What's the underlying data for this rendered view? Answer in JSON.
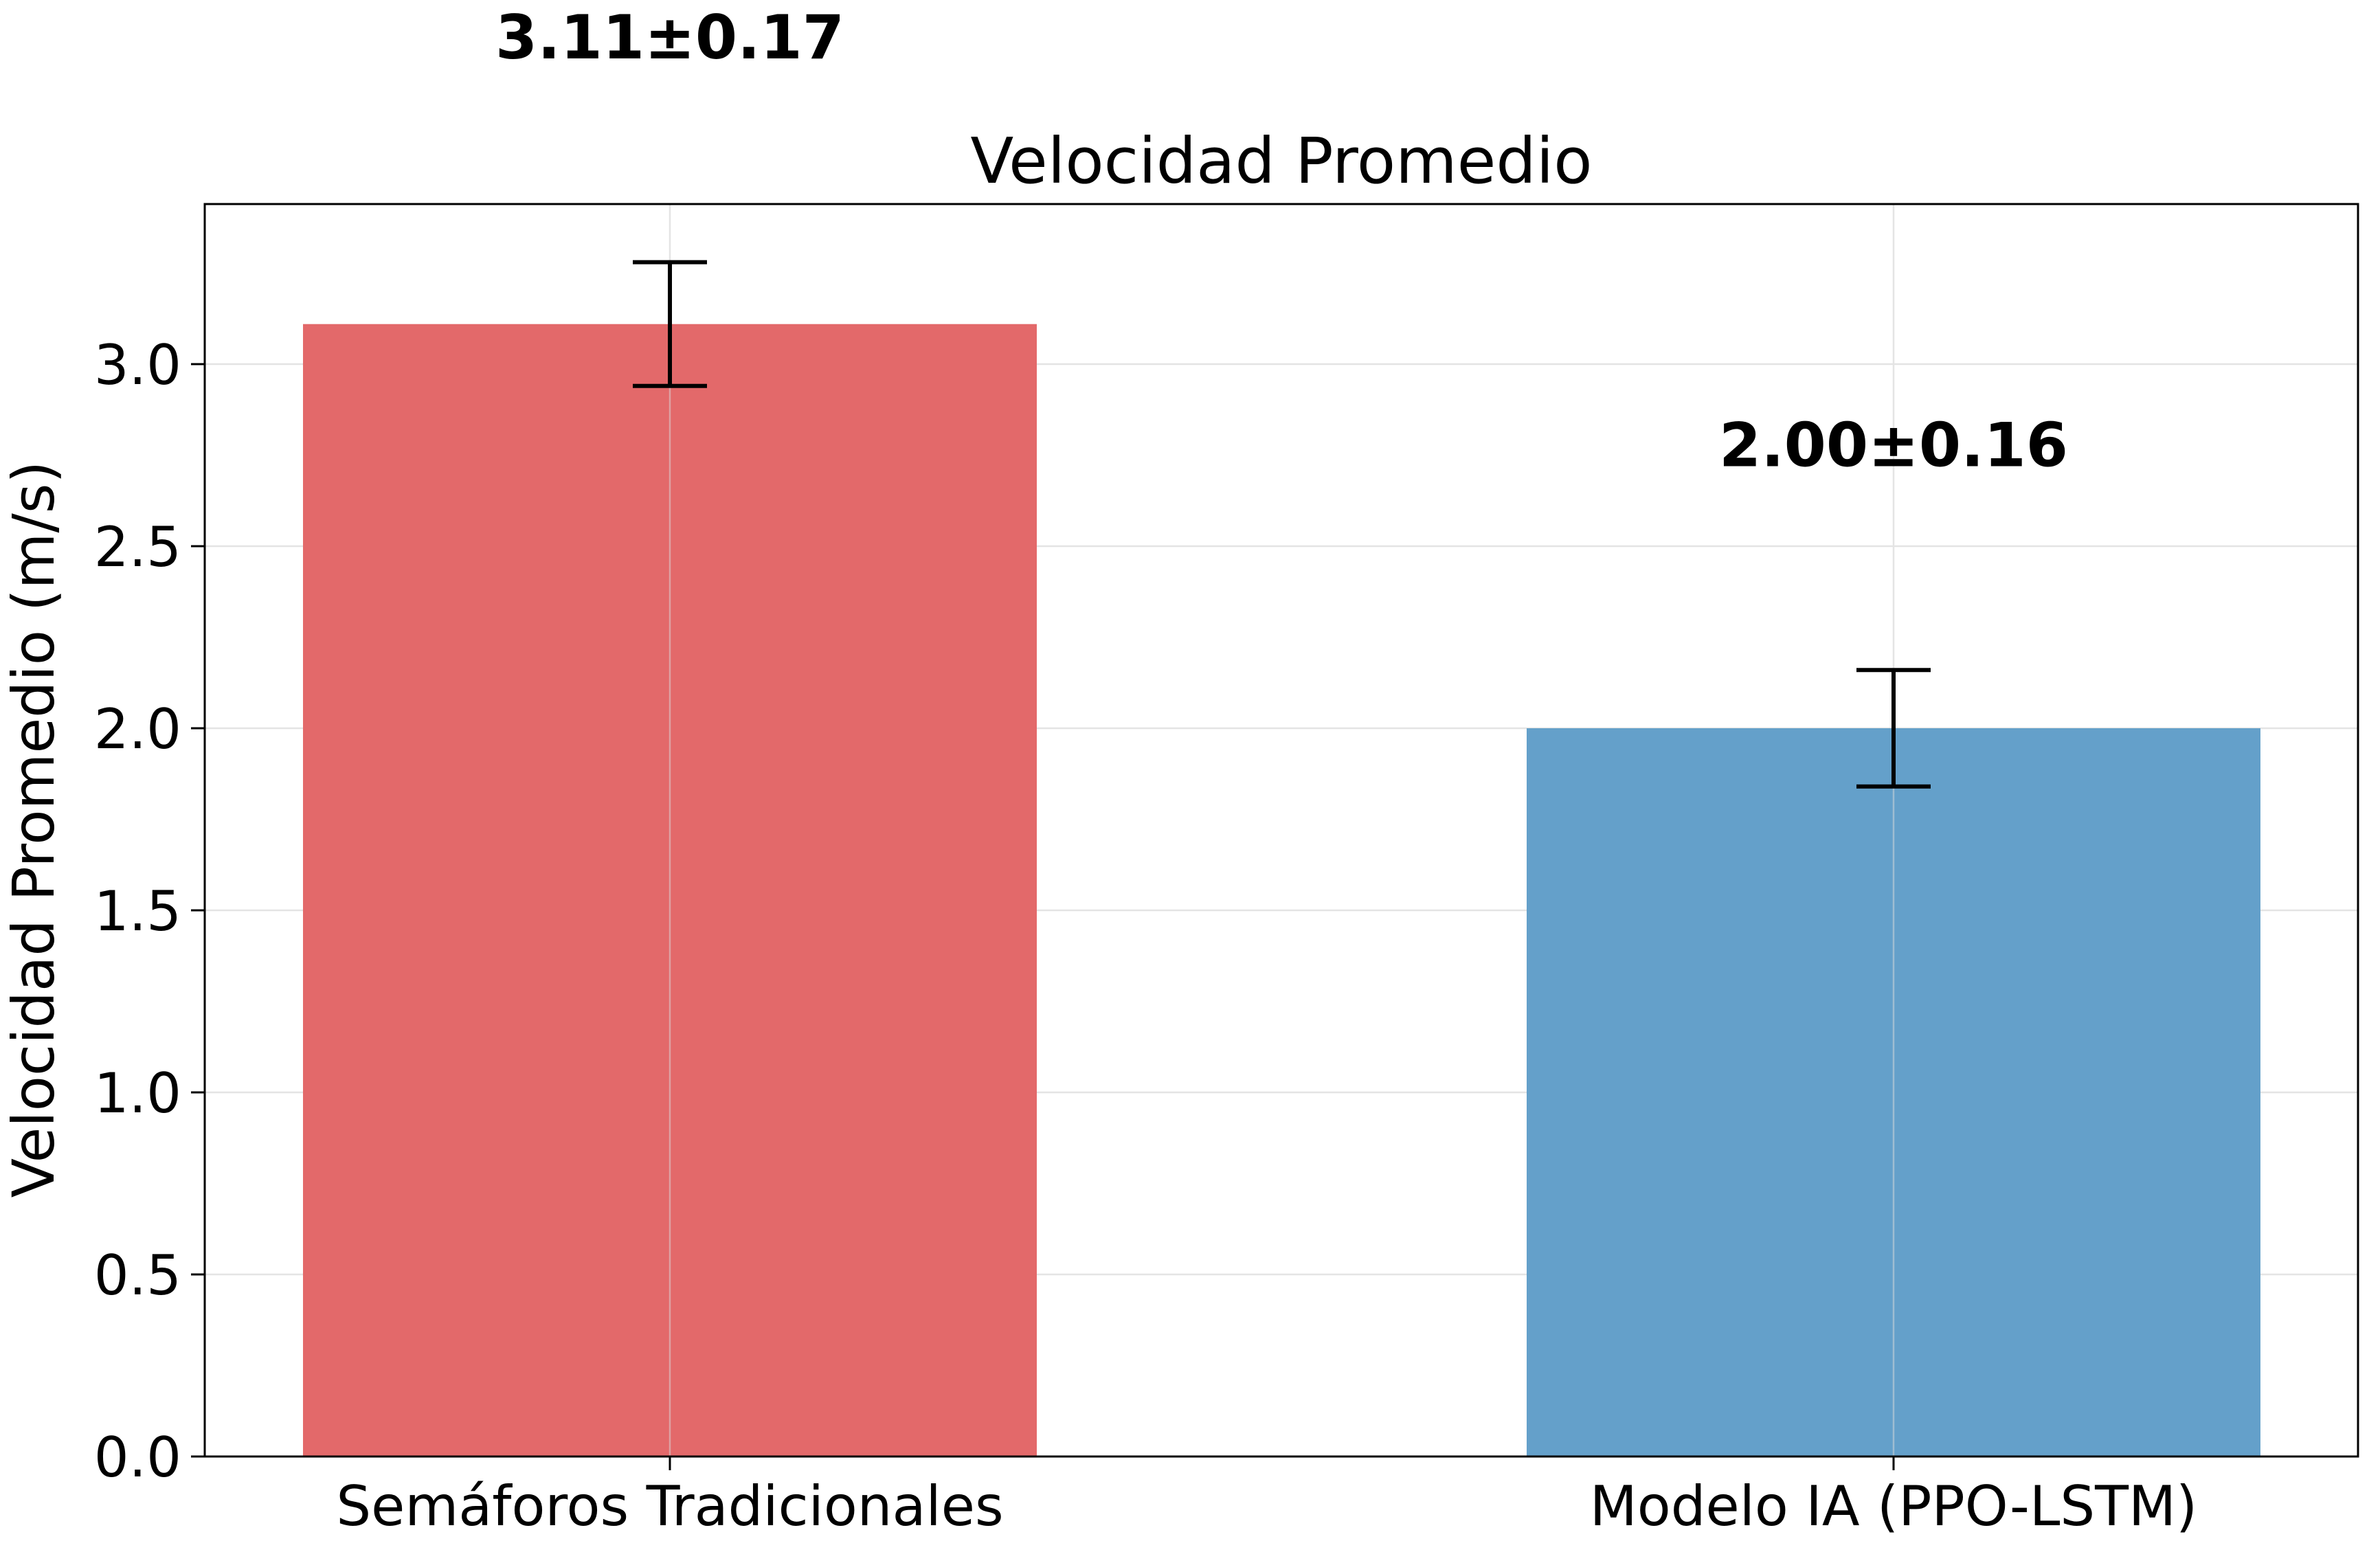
{
  "chart_data": {
    "type": "bar",
    "title": "Velocidad Promedio",
    "xlabel": "",
    "ylabel": "Velocidad Promedio (m/s)",
    "ylim": [
      0,
      3.45
    ],
    "yticks": [
      0.0,
      0.5,
      1.0,
      1.5,
      2.0,
      2.5,
      3.0
    ],
    "ytick_labels": [
      "0.0",
      "0.5",
      "1.0",
      "1.5",
      "2.0",
      "2.5",
      "3.0"
    ],
    "grid": true,
    "categories": [
      "Semáforos Tradicionales",
      "Modelo IA (PPO-LSTM)"
    ],
    "values": [
      3.11,
      2.0
    ],
    "errors": [
      0.17,
      0.16
    ],
    "value_labels": [
      "3.11±0.17",
      "2.00±0.16"
    ],
    "colors": [
      "#e3696a",
      "#64a0ca"
    ]
  }
}
